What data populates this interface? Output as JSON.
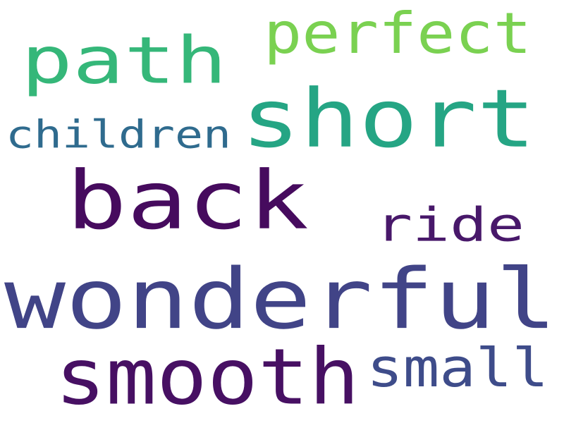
{
  "words": [
    {
      "text": "perfect",
      "color": "#7ad151"
    },
    {
      "text": "path",
      "color": "#35b779"
    },
    {
      "text": "short",
      "color": "#25a584"
    },
    {
      "text": "children",
      "color": "#2f6b8e"
    },
    {
      "text": "back",
      "color": "#460b5e"
    },
    {
      "text": "ride",
      "color": "#48186a"
    },
    {
      "text": "wonderful",
      "color": "#414487"
    },
    {
      "text": "smooth",
      "color": "#471063"
    },
    {
      "text": "small",
      "color": "#3e4c8a"
    }
  ]
}
